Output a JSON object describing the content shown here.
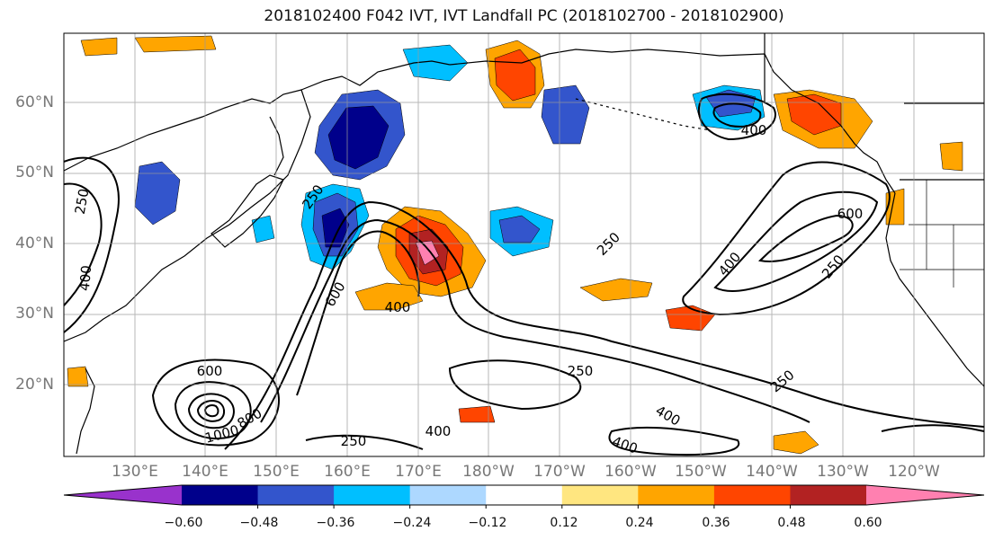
{
  "title": "2018102400 F042 IVT, IVT Landfall PC (2018102700 - 2018102900)",
  "lat_labels": [
    "60°N",
    "50°N",
    "40°N",
    "30°N",
    "20°N"
  ],
  "lon_labels": [
    "130°E",
    "140°E",
    "150°E",
    "160°E",
    "170°E",
    "180°W",
    "170°W",
    "160°W",
    "150°W",
    "140°W",
    "130°W",
    "120°W"
  ],
  "colorbar": {
    "ticks": [
      "−0.60",
      "−0.48",
      "−0.36",
      "−0.24",
      "−0.12",
      "0.12",
      "0.24",
      "0.36",
      "0.48",
      "0.60"
    ],
    "colors": [
      "#9932cc",
      "#00008b",
      "#3355cc",
      "#00bfff",
      "#add8ff",
      "#ffffff",
      "#ffe680",
      "#ffa500",
      "#ff4500",
      "#b22222",
      "#ff80b0"
    ]
  },
  "contour_labels": [
    "250",
    "250",
    "250",
    "250",
    "250",
    "250",
    "250",
    "400",
    "400",
    "400",
    "400",
    "400",
    "400",
    "400",
    "600",
    "600",
    "600",
    "800",
    "1000"
  ],
  "colors": {
    "land_outline": "#000000",
    "grid": "#999999",
    "contour": "#000000"
  }
}
